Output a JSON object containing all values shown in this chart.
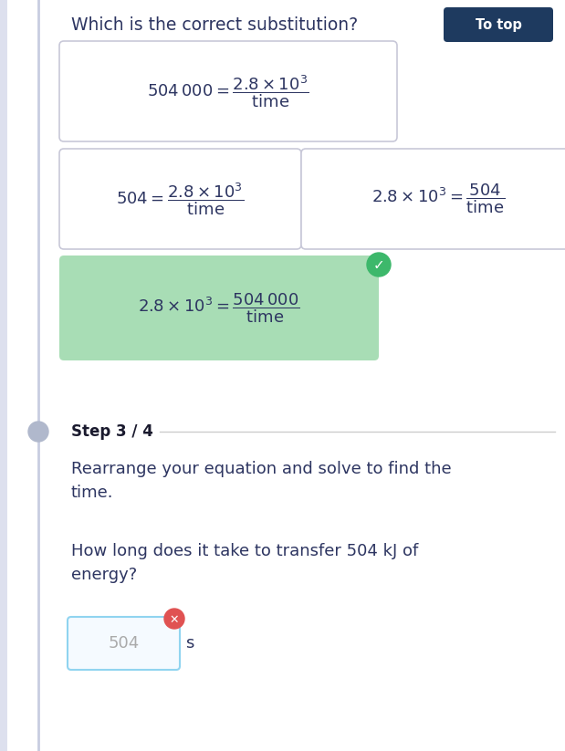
{
  "bg_color": "#ffffff",
  "title": "Which is the correct substitution?",
  "title_color": "#2d3561",
  "title_fontsize": 13.5,
  "to_top_bg": "#1e3a5f",
  "to_top_text": "To top",
  "to_top_text_color": "#ffffff",
  "box1_bg": "#ffffff",
  "box2_bg": "#ffffff",
  "box3_bg": "#ffffff",
  "box4_bg": "#a8ddb5",
  "box_border_color": "#c8c8d8",
  "eq_color": "#2d3561",
  "check_color": "#3db86b",
  "cross_color": "#e05252",
  "step_label": "Step 3 / 4",
  "step_color": "#1a1a2e",
  "step_fontsize": 12,
  "line_color": "#cccccc",
  "body_text1": "Rearrange your equation and solve to find the\ntime.",
  "body_text2": "How long does it take to transfer 504 kJ of\nenergy?",
  "body_fontsize": 13,
  "body_color": "#2d3561",
  "input_value": "504",
  "input_unit": "s",
  "input_border_color": "#90d4f0",
  "input_text_color": "#aaaaaa",
  "timeline_color": "#c8cde0",
  "timeline_dot_color": "#b0b8cc",
  "left_bar_color": "#dde0ee"
}
